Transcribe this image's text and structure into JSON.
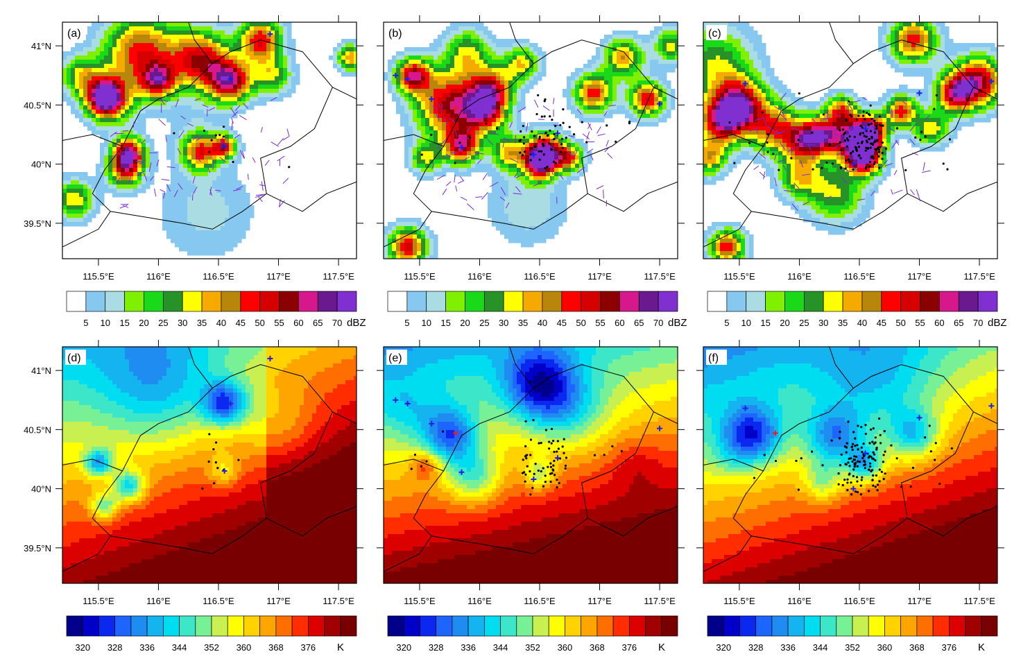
{
  "figure": {
    "panels": [
      {
        "id": "a",
        "label": "(a)",
        "row": 0,
        "col": 0,
        "variable": "reflectivity",
        "wind_barbs": true
      },
      {
        "id": "b",
        "label": "(b)",
        "row": 0,
        "col": 1,
        "variable": "reflectivity",
        "wind_barbs": true
      },
      {
        "id": "c",
        "label": "(c)",
        "row": 0,
        "col": 2,
        "variable": "reflectivity",
        "wind_barbs": true
      },
      {
        "id": "d",
        "label": "(d)",
        "row": 1,
        "col": 0,
        "variable": "equivalent_potential_temperature"
      },
      {
        "id": "e",
        "label": "(e)",
        "row": 1,
        "col": 1,
        "variable": "equivalent_potential_temperature"
      },
      {
        "id": "f",
        "label": "(f)",
        "row": 1,
        "col": 2,
        "variable": "equivalent_potential_temperature"
      }
    ],
    "y_ticks": [
      "41°N",
      "40.5°N",
      "40°N",
      "39.5°N"
    ],
    "x_ticks": [
      "115.5°E",
      "116°E",
      "116.5°E",
      "117°E",
      "117.5°E"
    ]
  },
  "chart_data": [
    {
      "type": "heatmap",
      "panels": [
        "a",
        "b",
        "c"
      ],
      "quantity": "radar reflectivity",
      "xlim": [
        115.2,
        117.65
      ],
      "ylim": [
        39.2,
        41.2
      ],
      "x_ticks": [
        115.5,
        116,
        116.5,
        117,
        117.5
      ],
      "y_ticks": [
        39.5,
        40,
        40.5,
        41
      ],
      "colorbar": {
        "unit": "dBZ",
        "levels": [
          "5",
          "10",
          "15",
          "20",
          "25",
          "30",
          "35",
          "40",
          "45",
          "50",
          "55",
          "60",
          "65",
          "70"
        ],
        "colors": [
          "#ffffff",
          "#87c8f0",
          "#aadce4",
          "#7ef000",
          "#19d919",
          "#279227",
          "#ffff00",
          "#f5aa00",
          "#b8860b",
          "#ff0000",
          "#d70000",
          "#8b0000",
          "#d7188c",
          "#6a1a8e",
          "#8030d0"
        ]
      },
      "markers": {
        "lightning_flash": "black dot",
        "positive_flash": "red +",
        "negative_flash": "blue +",
        "wind": "purple barbs"
      }
    },
    {
      "type": "heatmap",
      "panels": [
        "d",
        "e",
        "f"
      ],
      "quantity": "equivalent potential temperature",
      "xlim": [
        115.2,
        117.65
      ],
      "ylim": [
        39.2,
        41.2
      ],
      "x_ticks": [
        115.5,
        116,
        116.5,
        117,
        117.5
      ],
      "y_ticks": [
        39.5,
        40,
        40.5,
        41
      ],
      "colorbar": {
        "unit": "K",
        "levels": [
          "320",
          "328",
          "336",
          "344",
          "352",
          "360",
          "368",
          "376"
        ],
        "colors": [
          "#00008b",
          "#0000c8",
          "#0a28f0",
          "#1e64ff",
          "#1e8cf0",
          "#14b4f0",
          "#00dcf0",
          "#3ce6c8",
          "#78f096",
          "#c8f050",
          "#ffff00",
          "#ffd200",
          "#ffa500",
          "#ff6e00",
          "#ff2d00",
          "#dc0000",
          "#a00000",
          "#780000"
        ]
      }
    }
  ]
}
